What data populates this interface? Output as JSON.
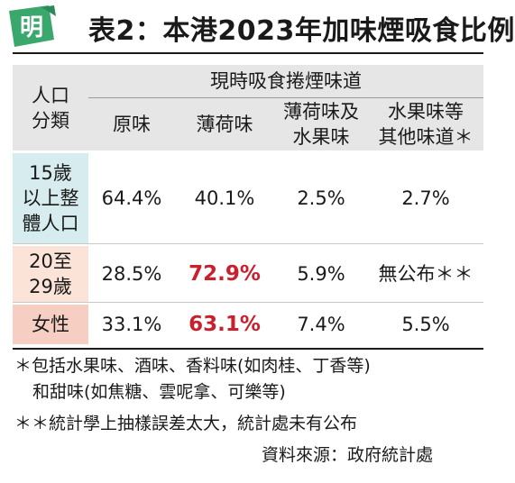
{
  "header": {
    "logo_char": "明",
    "title": "表2：本港2023年加味煙吸食比例",
    "brand_color": "#3aa76d"
  },
  "table": {
    "row_header_label": "人口\n分類",
    "super_header": "現時吸食捲煙味道",
    "columns": [
      "原味",
      "薄荷味",
      "薄荷味及\n水果味",
      "水果味等\n其他味道＊"
    ],
    "rows": [
      {
        "label": "15歲\n以上整\n體人口",
        "values": [
          "64.4%",
          "40.1%",
          "2.5%",
          "2.7%"
        ],
        "highlight": [
          false,
          false,
          false,
          false
        ]
      },
      {
        "label": "20至\n29歲",
        "values": [
          "28.5%",
          "72.9%",
          "5.9%",
          "無公布＊＊"
        ],
        "highlight": [
          false,
          true,
          false,
          false
        ]
      },
      {
        "label": "女性",
        "values": [
          "33.1%",
          "63.1%",
          "7.4%",
          "5.5%"
        ],
        "highlight": [
          false,
          true,
          false,
          false
        ]
      }
    ],
    "colors": {
      "highlight": "#c8202c",
      "header_bg": "#e6e6e6",
      "row1_bg": "#d6ecee",
      "row2_bg": "#fbe3d7",
      "row3_bg": "#f6cfc2"
    }
  },
  "notes": {
    "note1_line1": "＊包括水果味、酒味、香料味(如肉桂、丁香等)",
    "note1_line2": "和甜味(如焦糖、雲呢拿、可樂等)",
    "note2": "＊＊統計學上抽樣誤差太大，統計處未有公布",
    "source": "資料來源：政府統計處"
  }
}
